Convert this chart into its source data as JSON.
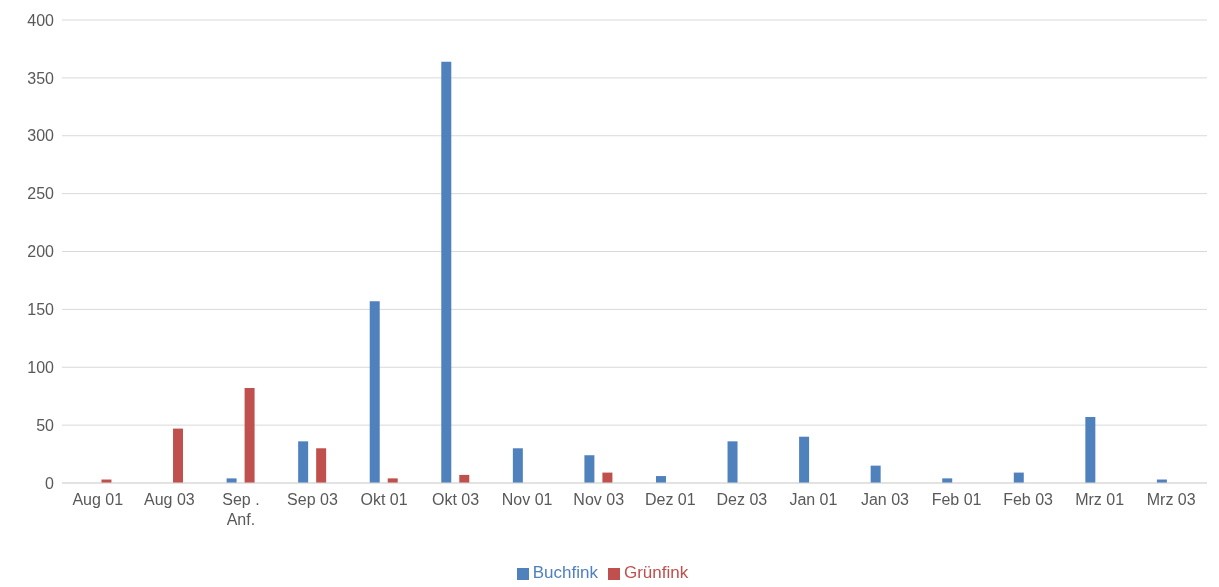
{
  "chart_data": {
    "type": "bar",
    "categories": [
      "Aug 01",
      "Aug 03",
      "Sep . Anf.",
      "Sep 03",
      "Okt 01",
      "Okt 03",
      "Nov 01",
      "Nov 03",
      "Dez 01",
      "Dez 03",
      "Jan 01",
      "Jan 03",
      "Feb 01",
      "Feb 03",
      "Mrz 01",
      "Mrz 03"
    ],
    "series": [
      {
        "name": "Buchfink",
        "color": "#4f81bd",
        "values": [
          null,
          null,
          4,
          36,
          157,
          364,
          30,
          24,
          6,
          36,
          40,
          15,
          4,
          9,
          57,
          3
        ]
      },
      {
        "name": "Grünfink",
        "color": "#c0504d",
        "values": [
          3,
          47,
          82,
          30,
          4,
          7,
          null,
          9,
          null,
          null,
          null,
          null,
          null,
          null,
          null,
          null
        ]
      }
    ],
    "ylim": [
      0,
      400
    ],
    "yticks": [
      0,
      50,
      100,
      150,
      200,
      250,
      300,
      350,
      400
    ],
    "grid": "y",
    "legend": "bottom"
  }
}
